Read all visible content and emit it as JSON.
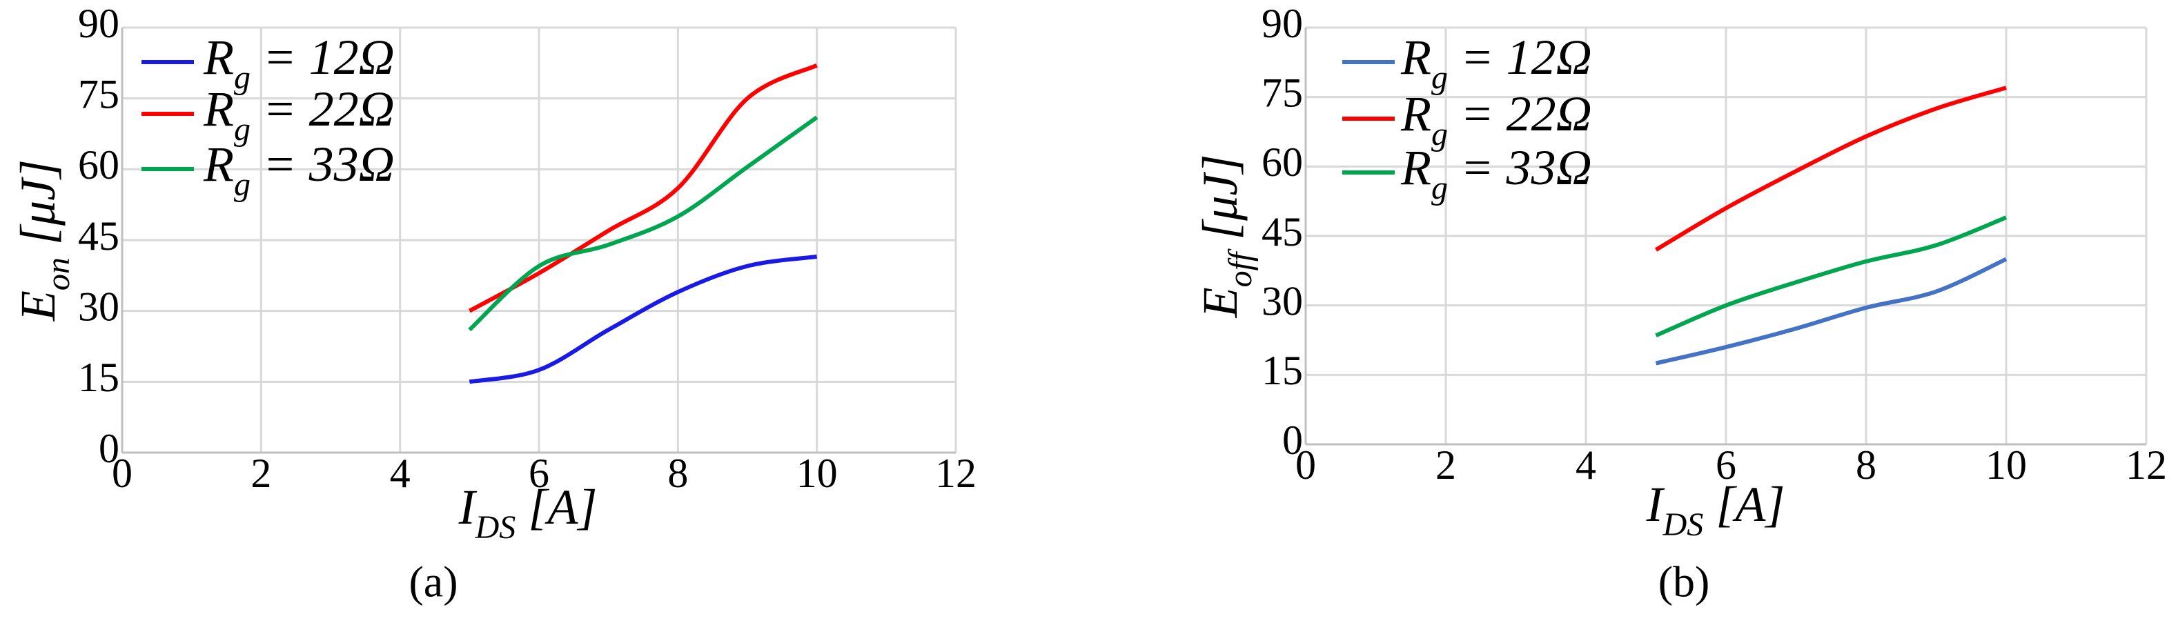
{
  "chart_data": [
    {
      "type": "line",
      "caption": "(a)",
      "xlabel": [
        "I",
        "DS",
        " [A]"
      ],
      "ylabel": [
        "E",
        "on",
        " [μJ]"
      ],
      "x": [
        5,
        6,
        7,
        8,
        9,
        10
      ],
      "xlim": [
        0,
        12
      ],
      "xticks": [
        0,
        2,
        4,
        6,
        8,
        10,
        12
      ],
      "ylim": [
        0,
        90
      ],
      "yticks": [
        0,
        15,
        30,
        45,
        60,
        75,
        90
      ],
      "grid": true,
      "series": [
        {
          "name": [
            "R",
            "g",
            " = 12Ω"
          ],
          "color": "#1a1ae6",
          "values": [
            15,
            17.5,
            26,
            34,
            39.5,
            41.5
          ]
        },
        {
          "name": [
            "R",
            "g",
            " = 22Ω"
          ],
          "color": "#ff0000",
          "values": [
            30,
            38,
            47,
            56,
            75,
            82
          ]
        },
        {
          "name": [
            "R",
            "g",
            " = 33Ω"
          ],
          "color": "#00a550",
          "values": [
            26,
            39.5,
            44,
            50,
            60.5,
            71
          ]
        }
      ]
    },
    {
      "type": "line",
      "caption": "(b)",
      "xlabel": [
        "I",
        "DS",
        " [A]"
      ],
      "ylabel": [
        "E",
        "off",
        " [μJ]"
      ],
      "x": [
        5,
        6,
        7,
        8,
        9,
        10
      ],
      "xlim": [
        0,
        12
      ],
      "xticks": [
        0,
        2,
        4,
        6,
        8,
        10,
        12
      ],
      "ylim": [
        0,
        90
      ],
      "yticks": [
        0,
        15,
        30,
        45,
        60,
        75,
        90
      ],
      "grid": true,
      "series": [
        {
          "name": [
            "R",
            "g",
            " = 12Ω"
          ],
          "color": "#4472c4",
          "values": [
            17.5,
            21,
            25,
            29.5,
            33,
            40
          ]
        },
        {
          "name": [
            "R",
            "g",
            " = 22Ω"
          ],
          "color": "#ff0000",
          "values": [
            42,
            51,
            59,
            66.5,
            72.5,
            77
          ]
        },
        {
          "name": [
            "R",
            "g",
            " = 33Ω"
          ],
          "color": "#00a550",
          "values": [
            23.5,
            30,
            35,
            39.5,
            43,
            49
          ]
        }
      ]
    }
  ]
}
